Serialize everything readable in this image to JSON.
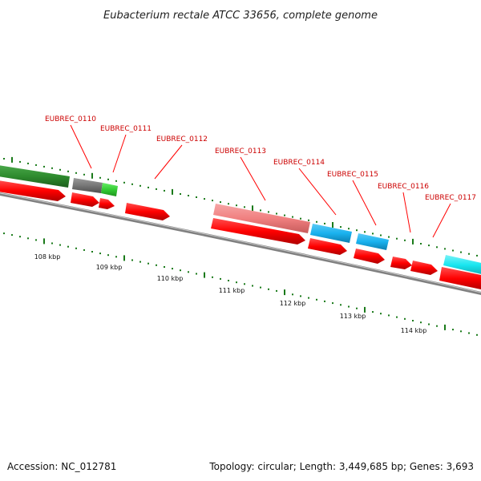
{
  "title": "Eubacterium rectale ATCC 33656, complete genome",
  "footer": {
    "accession": "Accession: NC_012781",
    "summary": "Topology: circular; Length: 3,449,685 bp; Genes: 3,693"
  },
  "gene_labels": [
    "EUBREC_0110",
    "EUBREC_0111",
    "EUBREC_0112",
    "EUBREC_0113",
    "EUBREC_0114",
    "EUBREC_0115",
    "EUBREC_0116",
    "EUBREC_0117"
  ],
  "kbp_labels": [
    "108 kbp",
    "109 kbp",
    "110 kbp",
    "111 kbp",
    "112 kbp",
    "113 kbp",
    "114 kbp"
  ],
  "colors": {
    "forward_cds": "#ff0000",
    "gc_dark_green": "#2e8b2e",
    "gc_light_green": "#33cc33",
    "gray_feature": "#777777",
    "pink_feature": "#f08080",
    "cyan_feature": "#1ab2ef",
    "aqua_feature": "#19e6f0",
    "backbone": "#888888",
    "tick_green": "#1a7a1a",
    "label_red": "#cc0000"
  }
}
